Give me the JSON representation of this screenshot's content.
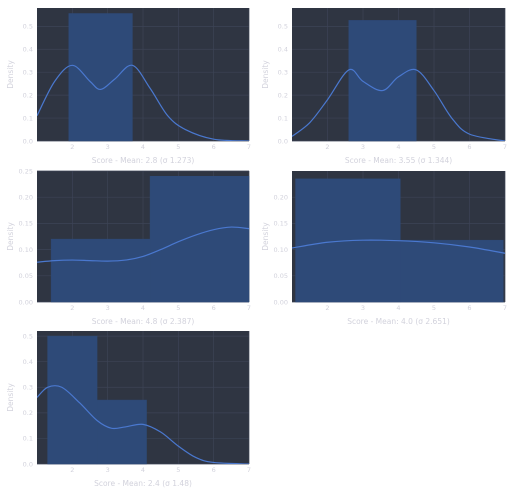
{
  "colors": {
    "panel_bg": "#2f3542",
    "grid": "#3d4456",
    "bar": "#2e4a78",
    "kde": "#4a78cf",
    "text": "#d2d2dc"
  },
  "chart_data": [
    {
      "type": "histogram",
      "title": "",
      "xlabel": "Score - Mean: 2.8 (σ 1.273)",
      "ylabel": "Density",
      "xlim": [
        1,
        7
      ],
      "ylim": [
        0,
        0.58
      ],
      "xticks": [
        2,
        3,
        4,
        5,
        6,
        7
      ],
      "yticks": [
        0.0,
        0.1,
        0.2,
        0.3,
        0.4,
        0.5
      ],
      "grid": true,
      "bins": [
        {
          "x0": 1.9,
          "x1": 3.7,
          "height": 0.556
        }
      ],
      "kde": {
        "x": [
          1,
          1.5,
          2,
          2.5,
          2.8,
          3.2,
          3.7,
          4.2,
          4.7,
          5.2,
          6,
          7
        ],
        "y": [
          0.11,
          0.26,
          0.33,
          0.26,
          0.225,
          0.27,
          0.33,
          0.23,
          0.11,
          0.05,
          0.008,
          0.0
        ]
      }
    },
    {
      "type": "histogram",
      "title": "",
      "xlabel": "Score - Mean: 3.55 (σ 1.344)",
      "ylabel": "Density",
      "xlim": [
        1,
        7
      ],
      "ylim": [
        0,
        0.58
      ],
      "xticks": [
        2,
        3,
        4,
        5,
        6,
        7
      ],
      "yticks": [
        0.0,
        0.1,
        0.2,
        0.3,
        0.4,
        0.5
      ],
      "grid": true,
      "bins": [
        {
          "x0": 2.6,
          "x1": 4.5,
          "height": 0.526
        }
      ],
      "kde": {
        "x": [
          1,
          1.5,
          2,
          2.6,
          3,
          3.55,
          4,
          4.5,
          5,
          5.5,
          6,
          7
        ],
        "y": [
          0.02,
          0.08,
          0.18,
          0.31,
          0.26,
          0.22,
          0.28,
          0.31,
          0.22,
          0.1,
          0.03,
          0.0
        ]
      }
    },
    {
      "type": "histogram",
      "title": "",
      "xlabel": "Score - Mean: 4.8 (σ 2.387)",
      "ylabel": "Density",
      "xlim": [
        1,
        7
      ],
      "ylim": [
        0,
        0.25
      ],
      "xticks": [
        2,
        3,
        4,
        5,
        6,
        7
      ],
      "yticks": [
        0.0,
        0.05,
        0.1,
        0.15,
        0.2,
        0.25
      ],
      "grid": true,
      "bins": [
        {
          "x0": 1.4,
          "x1": 4.2,
          "height": 0.12
        },
        {
          "x0": 4.2,
          "x1": 7.0,
          "height": 0.24
        }
      ],
      "kde": {
        "x": [
          1,
          1.5,
          2,
          2.5,
          3,
          3.5,
          4,
          4.5,
          5,
          5.5,
          6,
          6.5,
          7
        ],
        "y": [
          0.076,
          0.079,
          0.08,
          0.079,
          0.078,
          0.08,
          0.087,
          0.1,
          0.115,
          0.128,
          0.138,
          0.143,
          0.14
        ]
      }
    },
    {
      "type": "histogram",
      "title": "",
      "xlabel": "Score - Mean: 4.0 (σ 2.651)",
      "ylabel": "Density",
      "xlim": [
        1,
        7
      ],
      "ylim": [
        0,
        0.25
      ],
      "xticks": [
        2,
        3,
        4,
        5,
        6,
        7
      ],
      "yticks": [
        0.0,
        0.05,
        0.1,
        0.15,
        0.2
      ],
      "grid": true,
      "bins": [
        {
          "x0": 1.1,
          "x1": 4.05,
          "height": 0.235
        },
        {
          "x0": 4.05,
          "x1": 6.95,
          "height": 0.118
        }
      ],
      "kde": {
        "x": [
          1,
          2,
          3,
          4,
          5,
          6,
          7
        ],
        "y": [
          0.103,
          0.114,
          0.118,
          0.117,
          0.113,
          0.105,
          0.093
        ]
      }
    },
    {
      "type": "histogram",
      "title": "",
      "xlabel": "Score - Mean: 2.4 (σ 1.48)",
      "ylabel": "Density",
      "xlim": [
        1,
        7
      ],
      "ylim": [
        0,
        0.52
      ],
      "xticks": [
        2,
        3,
        4,
        5,
        6,
        7
      ],
      "yticks": [
        0.0,
        0.1,
        0.2,
        0.3,
        0.4,
        0.5
      ],
      "grid": true,
      "bins": [
        {
          "x0": 1.3,
          "x1": 2.7,
          "height": 0.5
        },
        {
          "x0": 2.7,
          "x1": 4.1,
          "height": 0.25
        }
      ],
      "kde": {
        "x": [
          1,
          1.3,
          1.7,
          2.2,
          2.7,
          3.1,
          3.5,
          4,
          4.5,
          5,
          5.5,
          6,
          7
        ],
        "y": [
          0.26,
          0.3,
          0.3,
          0.24,
          0.17,
          0.14,
          0.145,
          0.155,
          0.125,
          0.07,
          0.025,
          0.006,
          0.0
        ]
      }
    }
  ]
}
